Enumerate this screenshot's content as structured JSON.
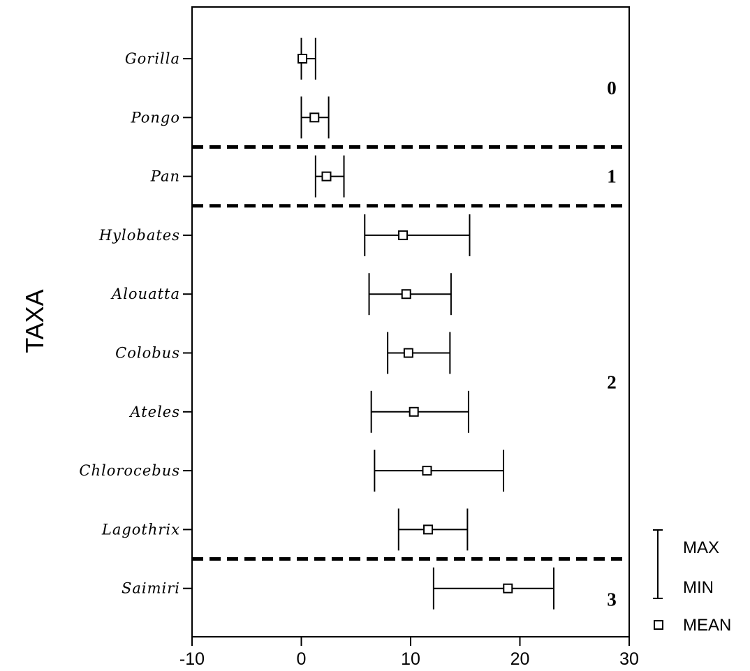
{
  "chart_data": {
    "type": "range",
    "ylabel": "TAXA",
    "xlim": [
      -10,
      30
    ],
    "x_ticks": [
      "-10",
      "0",
      "10",
      "20",
      "30"
    ],
    "categories": [
      "Gorilla",
      "Pongo",
      "Pan",
      "Hylobates",
      "Alouatta",
      "Colobus",
      "Ateles",
      "Chlorocebus",
      "Lagothrix",
      "Saimiri"
    ],
    "series": [
      {
        "name": "MEAN",
        "values": [
          0.1,
          1.2,
          2.3,
          9.3,
          9.6,
          9.8,
          10.3,
          11.5,
          11.6,
          18.9
        ]
      },
      {
        "name": "MIN",
        "values": [
          0.0,
          0.0,
          1.3,
          5.8,
          6.2,
          7.9,
          6.4,
          6.7,
          8.9,
          12.1
        ]
      },
      {
        "name": "MAX",
        "values": [
          1.3,
          2.5,
          3.9,
          15.4,
          13.7,
          13.6,
          15.3,
          18.5,
          15.2,
          23.1
        ]
      }
    ],
    "groups": [
      {
        "label": "0",
        "from": 0,
        "to": 1
      },
      {
        "label": "1",
        "from": 2,
        "to": 2
      },
      {
        "label": "2",
        "from": 3,
        "to": 8
      },
      {
        "label": "3",
        "from": 9,
        "to": 9
      }
    ],
    "legend": {
      "position": "bottom-right",
      "max_label": "MAX",
      "min_label": "MIN",
      "mean_label": "MEAN"
    },
    "grid": false
  }
}
